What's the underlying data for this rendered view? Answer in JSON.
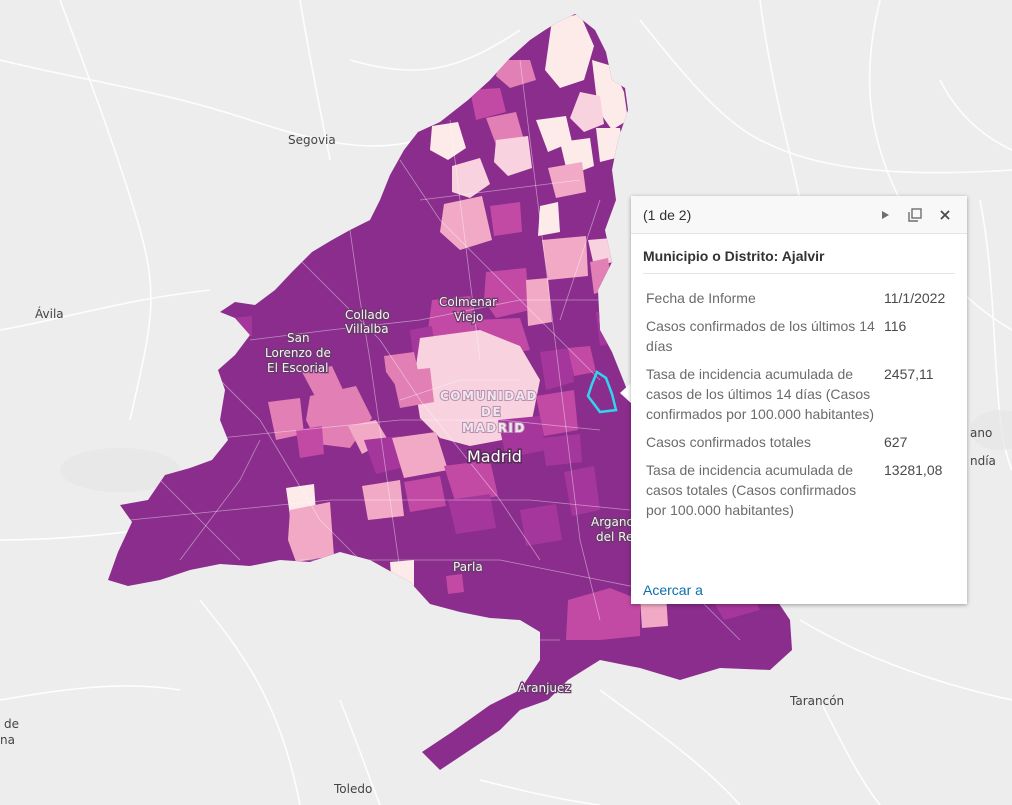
{
  "map": {
    "place_labels": {
      "segovia": "Segovia",
      "avila": "Ávila",
      "collado_villalba": [
        "Collado",
        "Villalba"
      ],
      "colmenar_viejo": [
        "Colmenar",
        "Viejo"
      ],
      "san_lorenzo": [
        "San",
        "Lorenzo de",
        "El Escorial"
      ],
      "comunidad": [
        "COMUNIDAD",
        "DE",
        "MADRID"
      ],
      "madrid": "Madrid",
      "parla": "Parla",
      "arganda": [
        "Arganda",
        "del Rey"
      ],
      "aranjuez": "Aranjuez",
      "toledo": "Toledo",
      "tarancon": "Tarancón",
      "edge_right": [
        "ano",
        "ndía"
      ],
      "edge_left": [
        "de",
        "na"
      ]
    },
    "colors": {
      "basemap": "#ededed",
      "roads": "#ffffff",
      "dark_purple": "#8b2d8c",
      "mid_purple": "#a5379c",
      "magenta": "#c24aa5",
      "pink": "#e27fb4",
      "light_pink": "#f2a9c6",
      "pale_pink": "#f8d2de",
      "very_pale": "#fcebe9",
      "highlight": "#2ed6f0"
    }
  },
  "popup": {
    "pager": "(1 de 2)",
    "next_icon": "play-icon",
    "dock_icon": "maximize-icon",
    "close_icon": "close-icon",
    "title": "Municipio o Distrito: Ajalvir",
    "rows": [
      {
        "label": "Fecha de Informe",
        "value": "11/1/2022"
      },
      {
        "label": "Casos confirmados de los últimos 14 días",
        "value": "116"
      },
      {
        "label": "Tasa de incidencia acumulada de casos de los últimos 14 días (Casos confirmados por 100.000 habitantes)",
        "value": "2457,11"
      },
      {
        "label": "Casos confirmados totales",
        "value": "627"
      },
      {
        "label": "Tasa de incidencia acumulada de casos totales (Casos confirmados por 100.000 habitantes)",
        "value": "13281,08"
      }
    ],
    "zoom_link": "Acercar a"
  }
}
